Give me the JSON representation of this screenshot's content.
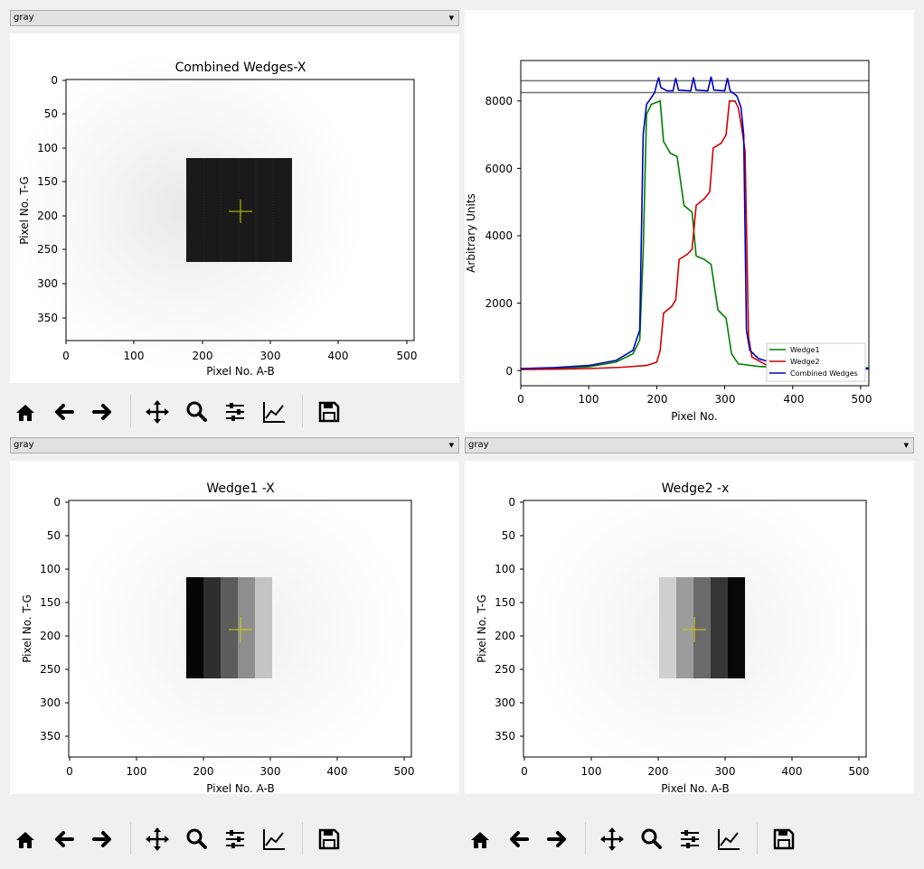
{
  "panels": [
    {
      "colormap": "gray",
      "title": "Combined Wedges-X",
      "xlabel": "Pixel No. A-B",
      "ylabel": "Pixel No. T-G",
      "xticks": [
        "0",
        "100",
        "200",
        "300",
        "400",
        "500"
      ],
      "yticks": [
        "0",
        "50",
        "100",
        "150",
        "200",
        "250",
        "300",
        "350"
      ]
    },
    {
      "colormap": "gray",
      "title": "Wedge1 -X",
      "xlabel": "Pixel No. A-B",
      "ylabel": "Pixel No. T-G",
      "xticks": [
        "0",
        "100",
        "200",
        "300",
        "400",
        "500"
      ],
      "yticks": [
        "0",
        "50",
        "100",
        "150",
        "200",
        "250",
        "300",
        "350"
      ]
    },
    {
      "colormap": "gray",
      "title": "Wedge2 -x",
      "xlabel": "Pixel No. A-B",
      "ylabel": "Pixel No. T-G",
      "xticks": [
        "0",
        "100",
        "200",
        "300",
        "400",
        "500"
      ],
      "yticks": [
        "0",
        "50",
        "100",
        "150",
        "200",
        "250",
        "300",
        "350"
      ]
    }
  ],
  "profile": {
    "xlabel": "Pixel No.",
    "ylabel": "Arbitrary Units",
    "xticks": [
      "0",
      "100",
      "200",
      "300",
      "400",
      "500"
    ],
    "yticks": [
      "0",
      "2000",
      "4000",
      "6000",
      "8000"
    ]
  },
  "toolbar_icons": [
    "home-icon",
    "back-arrow-icon",
    "forward-arrow-icon",
    "pan-move-icon",
    "zoom-magnifier-icon",
    "configure-subplots-icon",
    "edit-axis-icon",
    "save-floppy-icon"
  ],
  "chart_data": {
    "type": "line",
    "xlabel": "Pixel No.",
    "ylabel": "Arbitrary Units",
    "xlim": [
      0,
      512
    ],
    "ylim": [
      -450,
      9200
    ],
    "legend_position": "lower-right",
    "hlines": [
      8250,
      8600
    ],
    "series": [
      {
        "name": "Wedge1",
        "color": "#008000",
        "points": [
          [
            0,
            50
          ],
          [
            50,
            70
          ],
          [
            100,
            110
          ],
          [
            140,
            250
          ],
          [
            165,
            500
          ],
          [
            175,
            900
          ],
          [
            180,
            3500
          ],
          [
            185,
            7600
          ],
          [
            192,
            7900
          ],
          [
            205,
            8000
          ],
          [
            210,
            6800
          ],
          [
            220,
            6450
          ],
          [
            230,
            6350
          ],
          [
            240,
            4900
          ],
          [
            252,
            4700
          ],
          [
            258,
            3400
          ],
          [
            270,
            3300
          ],
          [
            280,
            3150
          ],
          [
            290,
            1800
          ],
          [
            302,
            1550
          ],
          [
            310,
            500
          ],
          [
            320,
            200
          ],
          [
            350,
            120
          ],
          [
            400,
            90
          ],
          [
            512,
            80
          ]
        ]
      },
      {
        "name": "Wedge2",
        "color": "#d00000",
        "points": [
          [
            0,
            30
          ],
          [
            50,
            40
          ],
          [
            100,
            60
          ],
          [
            150,
            100
          ],
          [
            185,
            150
          ],
          [
            200,
            250
          ],
          [
            205,
            600
          ],
          [
            210,
            1700
          ],
          [
            222,
            1900
          ],
          [
            228,
            2100
          ],
          [
            233,
            3300
          ],
          [
            245,
            3450
          ],
          [
            252,
            3600
          ],
          [
            258,
            4900
          ],
          [
            270,
            5100
          ],
          [
            278,
            5300
          ],
          [
            283,
            6600
          ],
          [
            295,
            6750
          ],
          [
            302,
            7000
          ],
          [
            307,
            8000
          ],
          [
            315,
            8000
          ],
          [
            320,
            7800
          ],
          [
            325,
            7200
          ],
          [
            330,
            6500
          ],
          [
            335,
            1000
          ],
          [
            340,
            400
          ],
          [
            360,
            180
          ],
          [
            400,
            90
          ],
          [
            450,
            60
          ],
          [
            512,
            50
          ]
        ]
      },
      {
        "name": "Combined Wedges",
        "color": "#0000c0",
        "points": [
          [
            0,
            60
          ],
          [
            50,
            90
          ],
          [
            100,
            150
          ],
          [
            140,
            300
          ],
          [
            165,
            600
          ],
          [
            175,
            1200
          ],
          [
            180,
            7000
          ],
          [
            185,
            7900
          ],
          [
            192,
            8100
          ],
          [
            197,
            8250
          ],
          [
            200,
            8500
          ],
          [
            203,
            8700
          ],
          [
            206,
            8400
          ],
          [
            215,
            8300
          ],
          [
            224,
            8300
          ],
          [
            228,
            8680
          ],
          [
            232,
            8320
          ],
          [
            250,
            8300
          ],
          [
            254,
            8700
          ],
          [
            258,
            8320
          ],
          [
            275,
            8300
          ],
          [
            280,
            8720
          ],
          [
            284,
            8320
          ],
          [
            300,
            8300
          ],
          [
            304,
            8680
          ],
          [
            308,
            8300
          ],
          [
            318,
            8150
          ],
          [
            324,
            7800
          ],
          [
            328,
            7000
          ],
          [
            332,
            1200
          ],
          [
            337,
            600
          ],
          [
            350,
            350
          ],
          [
            380,
            180
          ],
          [
            420,
            100
          ],
          [
            470,
            60
          ],
          [
            512,
            50
          ]
        ]
      }
    ]
  }
}
